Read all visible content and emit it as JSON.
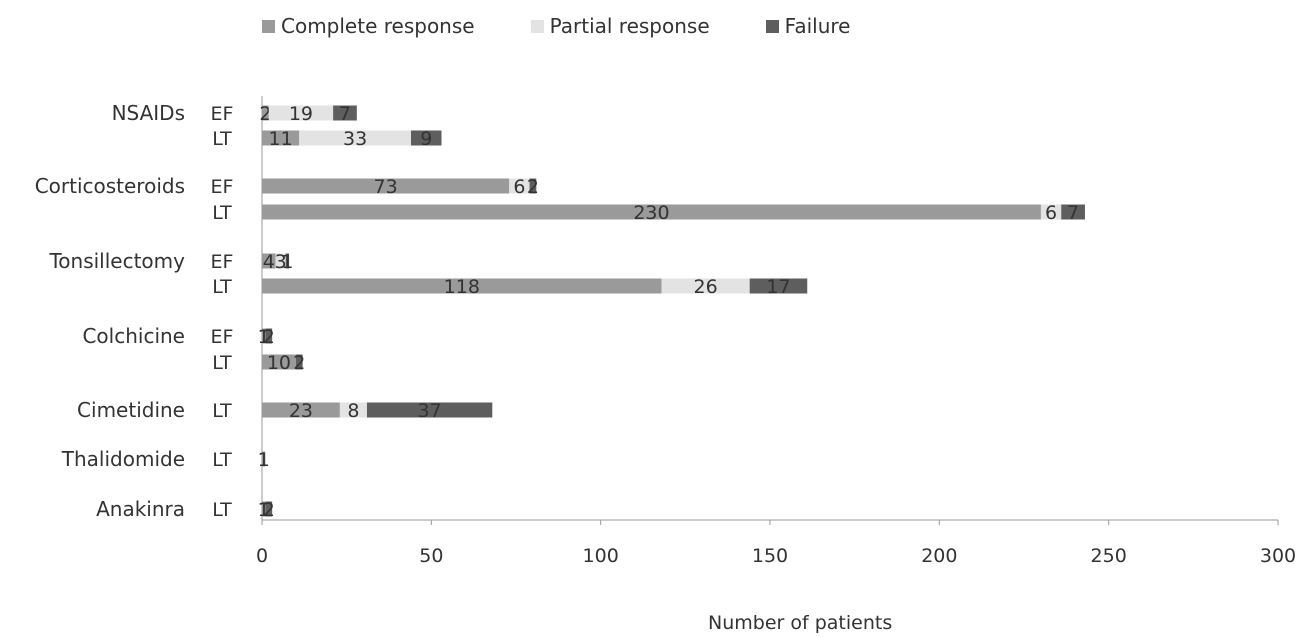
{
  "chart_data": {
    "type": "bar",
    "stacked": true,
    "orientation": "horizontal",
    "xlabel": "Number of patients",
    "xlim": [
      0,
      300
    ],
    "xticks": [
      0,
      50,
      100,
      150,
      200,
      250,
      300
    ],
    "legend": [
      "Complete response",
      "Partial response",
      "Failure"
    ],
    "legend_position": "top",
    "colors": [
      "#9a9a9a",
      "#e3e3e3",
      "#5e5e5e"
    ],
    "groups": [
      {
        "drug": "NSAIDs",
        "rows": [
          {
            "label": "EF",
            "values": [
              2,
              19,
              7
            ],
            "value_labels": [
              "2",
              "19",
              "7"
            ]
          },
          {
            "label": "LT",
            "values": [
              11,
              33,
              9
            ],
            "value_labels": [
              "11",
              "33",
              "9"
            ]
          }
        ]
      },
      {
        "drug": "Corticosteroids",
        "rows": [
          {
            "label": "EF",
            "values": [
              73,
              6,
              2
            ],
            "value_labels": [
              "73",
              "6",
              "2"
            ]
          },
          {
            "label": "LT",
            "values": [
              230,
              6,
              7
            ],
            "value_labels": [
              "230",
              "6",
              "7"
            ]
          }
        ]
      },
      {
        "drug": "Tonsillectomy",
        "rows": [
          {
            "label": "EF",
            "values": [
              4,
              3,
              1
            ],
            "value_labels": [
              "4",
              "3",
              "1"
            ]
          },
          {
            "label": "LT",
            "values": [
              118,
              26,
              17
            ],
            "value_labels": [
              "118",
              "26",
              "17"
            ]
          }
        ]
      },
      {
        "drug": "Colchicine",
        "rows": [
          {
            "label": "EF",
            "values": [
              1,
              0,
              2
            ],
            "value_labels": [
              "1",
              "",
              "2"
            ]
          },
          {
            "label": "LT",
            "values": [
              10,
              0,
              2
            ],
            "value_labels": [
              "10",
              "",
              "2"
            ]
          }
        ]
      },
      {
        "drug": "Cimetidine",
        "rows": [
          {
            "label": "LT",
            "values": [
              23,
              8,
              37
            ],
            "value_labels": [
              "23",
              "8",
              "37"
            ]
          }
        ]
      },
      {
        "drug": "Thalidomide",
        "rows": [
          {
            "label": "LT",
            "values": [
              1,
              0,
              0
            ],
            "value_labels": [
              "1",
              "",
              ""
            ]
          }
        ]
      },
      {
        "drug": "Anakinra",
        "rows": [
          {
            "label": "LT",
            "values": [
              1,
              0,
              2
            ],
            "value_labels": [
              "1",
              "",
              "2"
            ]
          }
        ]
      }
    ]
  }
}
